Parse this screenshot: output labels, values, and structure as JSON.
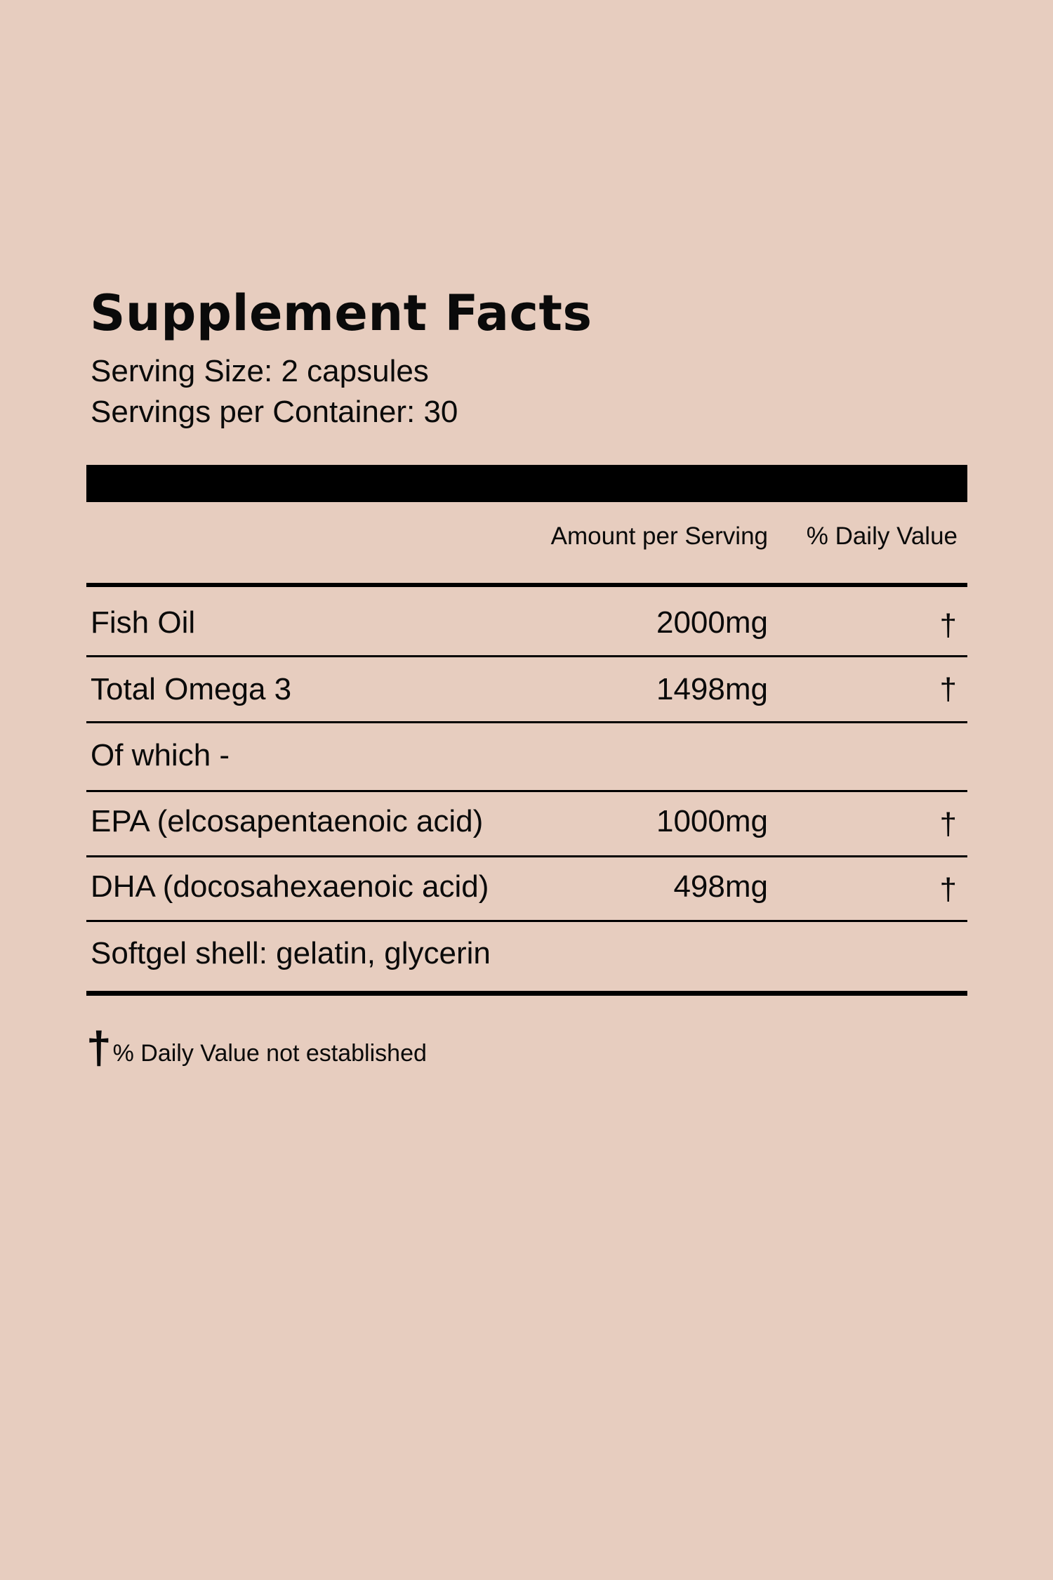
{
  "title": "Supplement Facts",
  "serving_size": "Serving Size: 2 capsules",
  "servings_per_container": "Servings per Container: 30",
  "header": {
    "amount": "Amount per Serving",
    "daily_value": "% Daily Value"
  },
  "rows": [
    {
      "name": "Fish Oil",
      "amount": "2000mg",
      "dv": "†"
    },
    {
      "name": "Total Omega 3",
      "amount": "1498mg",
      "dv": "†"
    },
    {
      "name": "Of which -",
      "amount": "",
      "dv": ""
    },
    {
      "name": "EPA (elcosapentaenoic acid)",
      "amount": "1000mg",
      "dv": "†"
    },
    {
      "name": "DHA (docosahexaenoic acid)",
      "amount": "498mg",
      "dv": "†"
    },
    {
      "name": "Softgel shell: gelatin, glycerin",
      "amount": "",
      "dv": ""
    }
  ],
  "footnote": {
    "symbol": "†",
    "text": "% Daily Value not established"
  },
  "colors": {
    "background": "#e7cdbf",
    "ink": "#000000"
  }
}
